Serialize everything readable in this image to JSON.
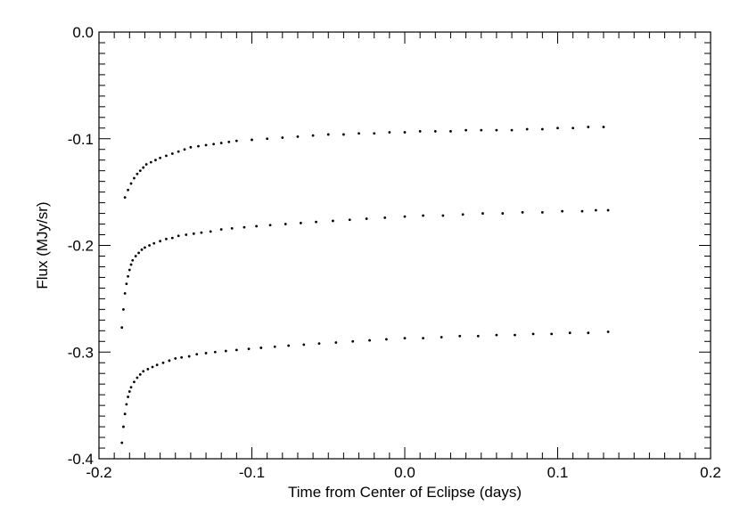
{
  "chart_data": {
    "type": "scatter",
    "xlabel": "Time from Center of Eclipse (days)",
    "ylabel": "Flux (MJy/sr)",
    "xlim": [
      -0.2,
      0.2
    ],
    "ylim": [
      -0.4,
      0.0
    ],
    "x_ticks": [
      -0.2,
      -0.1,
      0.0,
      0.1,
      0.2
    ],
    "x_tick_labels": [
      "-0.2",
      "-0.1",
      "0.0",
      "0.1",
      "0.2"
    ],
    "y_ticks": [
      -0.4,
      -0.3,
      -0.2,
      -0.1,
      0.0
    ],
    "y_tick_labels": [
      "-0.4",
      "-0.3",
      "-0.2",
      "-0.1",
      "0.0"
    ],
    "grid": false,
    "legend": "none",
    "marker_color": "#000000",
    "series": [
      {
        "x": [
          -0.183,
          -0.181,
          -0.179,
          -0.177,
          -0.175,
          -0.173,
          -0.171,
          -0.169,
          -0.166,
          -0.163,
          -0.16,
          -0.156,
          -0.152,
          -0.148,
          -0.144,
          -0.14,
          -0.135,
          -0.13,
          -0.125,
          -0.12,
          -0.115,
          -0.11,
          -0.1,
          -0.09,
          -0.08,
          -0.07,
          -0.06,
          -0.05,
          -0.04,
          -0.03,
          -0.02,
          -0.01,
          0.0,
          0.01,
          0.02,
          0.03,
          0.04,
          0.05,
          0.06,
          0.07,
          0.08,
          0.09,
          0.1,
          0.11,
          0.12,
          0.13
        ],
        "y": [
          -0.155,
          -0.148,
          -0.142,
          -0.137,
          -0.133,
          -0.13,
          -0.127,
          -0.124,
          -0.122,
          -0.12,
          -0.118,
          -0.116,
          -0.114,
          -0.112,
          -0.11,
          -0.108,
          -0.107,
          -0.106,
          -0.105,
          -0.104,
          -0.103,
          -0.102,
          -0.101,
          -0.1,
          -0.099,
          -0.098,
          -0.097,
          -0.096,
          -0.096,
          -0.095,
          -0.095,
          -0.094,
          -0.094,
          -0.093,
          -0.093,
          -0.093,
          -0.092,
          -0.092,
          -0.092,
          -0.092,
          -0.091,
          -0.091,
          -0.09,
          -0.09,
          -0.089,
          -0.089
        ]
      },
      {
        "x": [
          -0.185,
          -0.184,
          -0.183,
          -0.182,
          -0.181,
          -0.18,
          -0.179,
          -0.178,
          -0.176,
          -0.174,
          -0.172,
          -0.17,
          -0.167,
          -0.164,
          -0.16,
          -0.156,
          -0.152,
          -0.148,
          -0.143,
          -0.138,
          -0.133,
          -0.127,
          -0.12,
          -0.113,
          -0.105,
          -0.097,
          -0.088,
          -0.078,
          -0.068,
          -0.058,
          -0.047,
          -0.036,
          -0.025,
          -0.013,
          0.0,
          0.012,
          0.025,
          0.038,
          0.051,
          0.064,
          0.077,
          0.09,
          0.103,
          0.116,
          0.125,
          0.133
        ],
        "y": [
          -0.277,
          -0.26,
          -0.245,
          -0.236,
          -0.229,
          -0.223,
          -0.218,
          -0.214,
          -0.21,
          -0.207,
          -0.204,
          -0.202,
          -0.2,
          -0.198,
          -0.196,
          -0.194,
          -0.193,
          -0.191,
          -0.19,
          -0.189,
          -0.188,
          -0.187,
          -0.185,
          -0.184,
          -0.183,
          -0.182,
          -0.181,
          -0.18,
          -0.179,
          -0.178,
          -0.177,
          -0.176,
          -0.175,
          -0.174,
          -0.173,
          -0.172,
          -0.172,
          -0.171,
          -0.17,
          -0.17,
          -0.169,
          -0.169,
          -0.168,
          -0.168,
          -0.167,
          -0.167
        ]
      },
      {
        "x": [
          -0.185,
          -0.184,
          -0.183,
          -0.182,
          -0.181,
          -0.18,
          -0.179,
          -0.177,
          -0.175,
          -0.173,
          -0.171,
          -0.168,
          -0.165,
          -0.162,
          -0.158,
          -0.154,
          -0.15,
          -0.146,
          -0.141,
          -0.136,
          -0.13,
          -0.124,
          -0.117,
          -0.11,
          -0.102,
          -0.094,
          -0.085,
          -0.076,
          -0.066,
          -0.056,
          -0.045,
          -0.034,
          -0.023,
          -0.012,
          0.0,
          0.012,
          0.024,
          0.036,
          0.048,
          0.06,
          0.072,
          0.084,
          0.096,
          0.108,
          0.12,
          0.133
        ],
        "y": [
          -0.385,
          -0.37,
          -0.358,
          -0.349,
          -0.342,
          -0.337,
          -0.333,
          -0.328,
          -0.324,
          -0.321,
          -0.318,
          -0.316,
          -0.314,
          -0.312,
          -0.31,
          -0.308,
          -0.306,
          -0.305,
          -0.304,
          -0.302,
          -0.301,
          -0.3,
          -0.299,
          -0.298,
          -0.297,
          -0.296,
          -0.295,
          -0.294,
          -0.293,
          -0.292,
          -0.291,
          -0.29,
          -0.289,
          -0.288,
          -0.287,
          -0.287,
          -0.286,
          -0.285,
          -0.285,
          -0.284,
          -0.284,
          -0.283,
          -0.283,
          -0.282,
          -0.282,
          -0.281
        ]
      }
    ]
  }
}
